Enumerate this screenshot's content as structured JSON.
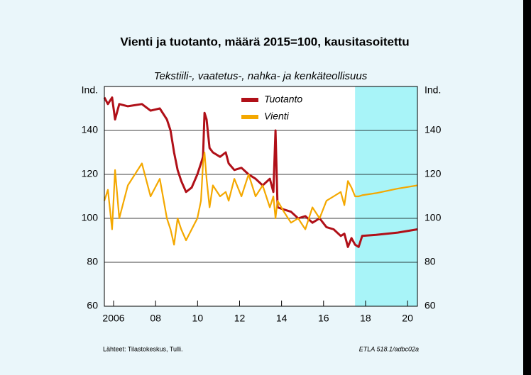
{
  "chart_data": {
    "type": "line",
    "title": "Vienti ja tuotanto, määrä 2015=100, kausitasoitettu",
    "subtitle": "Tekstiili-, vaatetus-, nahka- ja kenkäteollisuus",
    "y_unit": "Ind.",
    "source": "Lähteet:  Tilastokeskus, Tulli.",
    "code": "ETLA 518.1/adbc02a",
    "x": [
      2005.56,
      2005.73,
      2005.93,
      2006.07,
      2006.27,
      2006.68,
      2007.35,
      2007.76,
      2008.2,
      2008.54,
      2008.71,
      2008.88,
      2009.05,
      2009.22,
      2009.45,
      2009.72,
      2009.99,
      2010.16,
      2010.26,
      2010.33,
      2010.43,
      2010.57,
      2010.73,
      2011.07,
      2011.34,
      2011.48,
      2011.75,
      2012.09,
      2012.43,
      2012.76,
      2013.1,
      2013.44,
      2013.61,
      2013.71,
      2013.81,
      2014.11,
      2014.45,
      2014.79,
      2015.13,
      2015.47,
      2015.81,
      2016.14,
      2016.48,
      2016.82,
      2016.99,
      2017.16,
      2017.33,
      2017.5,
      2017.67,
      2017.84,
      2018.51,
      2019.53,
      2020.47
    ],
    "series": [
      {
        "name": "Tuotanto",
        "color": "#b01018",
        "values": [
          155,
          152,
          155,
          145,
          152,
          151,
          152,
          149,
          150,
          145,
          140,
          130,
          122,
          117,
          112,
          114,
          120,
          125,
          128,
          148,
          145,
          132,
          130,
          128,
          130,
          125,
          122,
          123,
          120,
          118,
          115,
          118,
          112,
          140,
          105,
          104,
          103,
          100,
          101,
          98,
          100,
          96,
          95,
          92,
          93,
          87,
          91,
          88,
          87,
          92,
          92.5,
          93.5,
          95
        ]
      },
      {
        "name": "Vienti",
        "color": "#f4a800",
        "values": [
          108,
          113,
          95,
          122,
          100,
          115,
          125,
          110,
          118,
          100,
          95,
          88,
          100,
          95,
          90,
          95,
          100,
          108,
          125,
          130,
          118,
          105,
          115,
          110,
          112,
          108,
          118,
          110,
          120,
          110,
          115,
          105,
          110,
          100,
          108,
          103,
          98,
          100,
          95,
          105,
          100,
          108,
          110,
          112,
          106,
          117,
          114,
          110,
          110,
          110.5,
          111.5,
          113.5,
          115
        ]
      }
    ],
    "forecast_span": [
      2017.5,
      2020.47
    ],
    "xlim": [
      2005.56,
      2020.47
    ],
    "xticks": [
      {
        "value": 2006,
        "label": "2006"
      },
      {
        "value": 2008,
        "label": "08"
      },
      {
        "value": 2010,
        "label": "10"
      },
      {
        "value": 2012,
        "label": "12"
      },
      {
        "value": 2014,
        "label": "14"
      },
      {
        "value": 2016,
        "label": "16"
      },
      {
        "value": 2018,
        "label": "18"
      },
      {
        "value": 2020,
        "label": "20"
      }
    ],
    "ylim": [
      60,
      160
    ],
    "yticks": [
      60,
      80,
      100,
      120,
      140
    ],
    "grid": true
  }
}
